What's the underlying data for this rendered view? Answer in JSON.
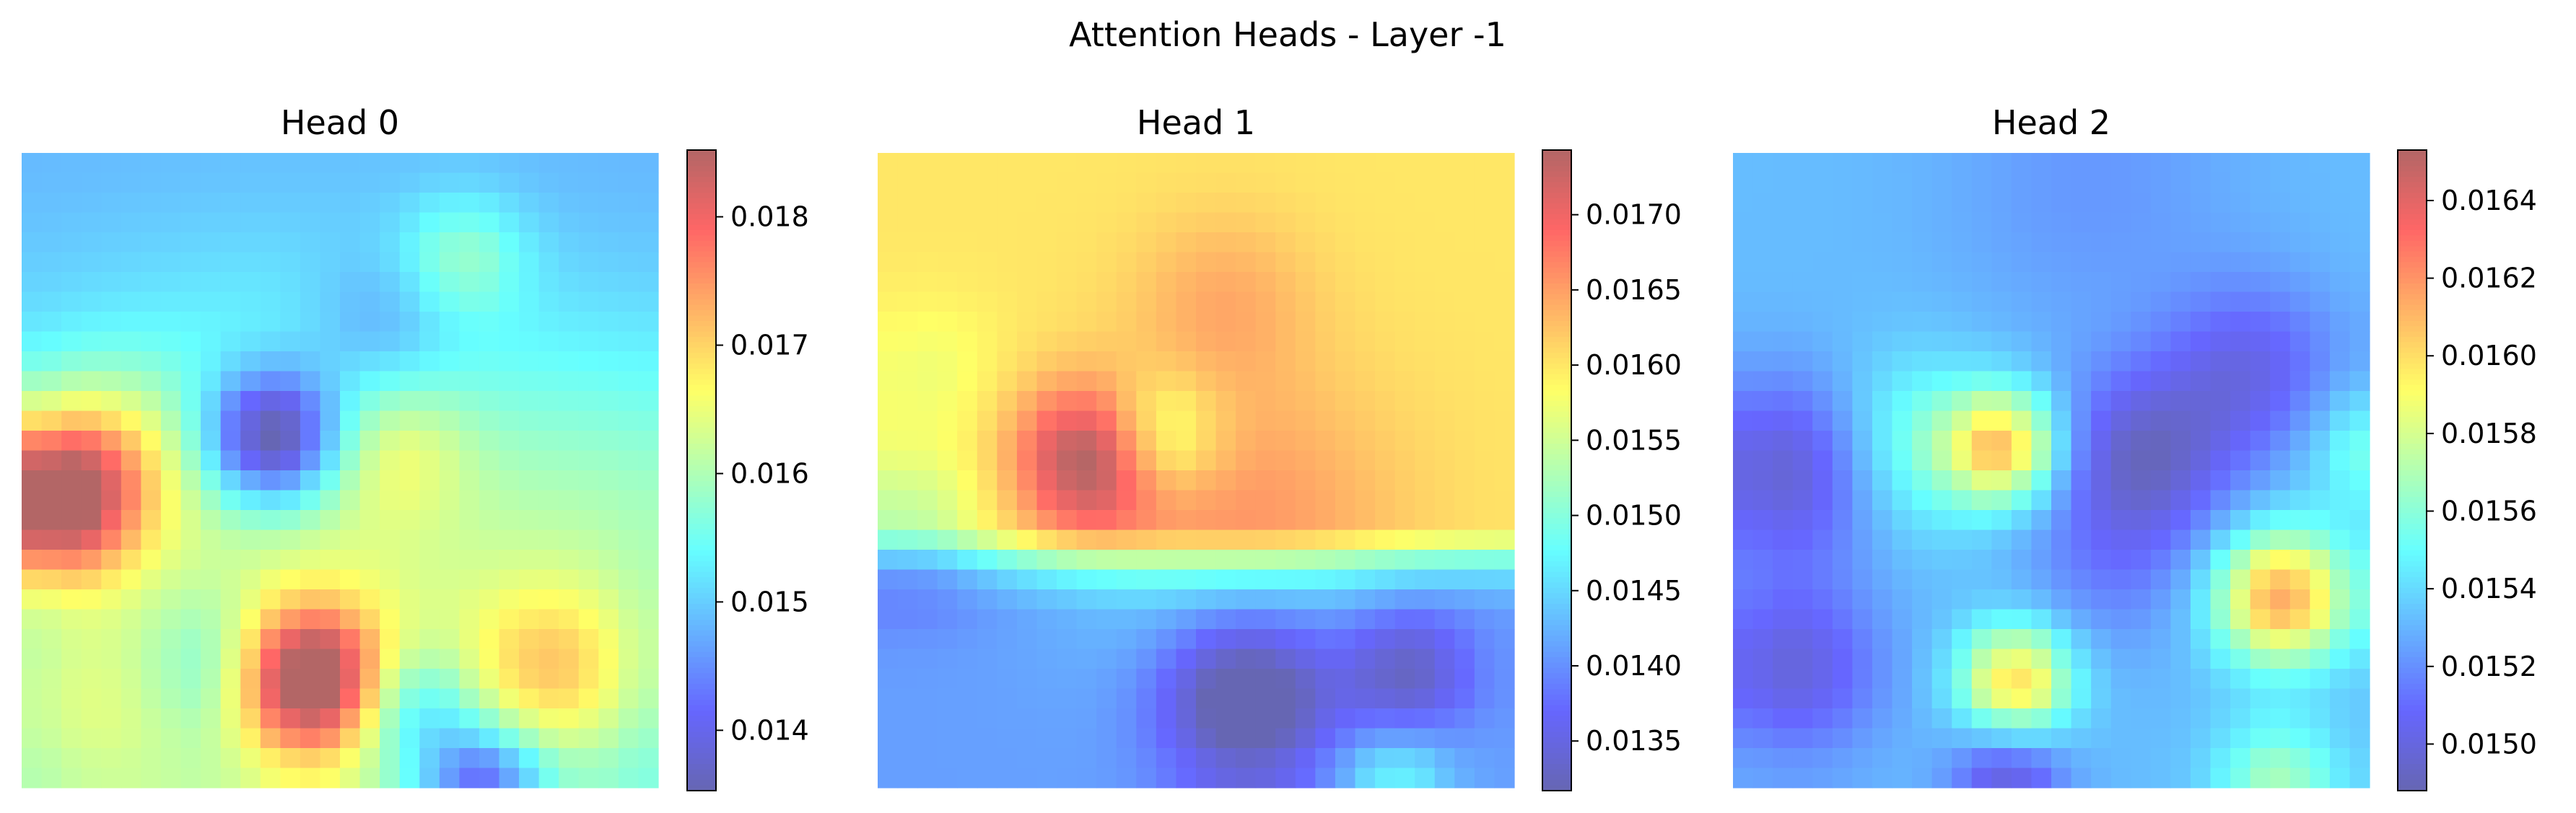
{
  "figure": {
    "title": "Attention Heads - Layer -1"
  },
  "colormap": {
    "name": "jet",
    "alpha": 0.6,
    "stops": [
      "#000080",
      "#0000ff",
      "#00ffff",
      "#ffff00",
      "#ff0000",
      "#800000"
    ]
  },
  "chart_data": [
    {
      "type": "heatmap",
      "title": "Head 0",
      "grid_size": 16,
      "vmin": 0.01353,
      "vmax": 0.01852,
      "colorbar_ticks": [
        0.014,
        0.015,
        0.016,
        0.017,
        0.018
      ],
      "colorbar_tick_labels": [
        "0.014",
        "0.015",
        "0.016",
        "0.017",
        "0.018"
      ],
      "blobs": [
        {
          "cx": 6.7,
          "cy": 12.8,
          "s": 1.2,
          "a": 0.0033
        },
        {
          "cx": 0.3,
          "cy": 8.3,
          "s": 1.3,
          "a": 0.003
        },
        {
          "cx": 1.4,
          "cy": 7.2,
          "s": 1.6,
          "a": 0.0012
        },
        {
          "cx": 5.8,
          "cy": 6.7,
          "s": 1.1,
          "a": -0.0028
        },
        {
          "cx": 10.6,
          "cy": 2.1,
          "s": 1.0,
          "a": 0.0009
        },
        {
          "cx": 12.9,
          "cy": 12.6,
          "s": 1.5,
          "a": 0.0013
        },
        {
          "cx": 11.1,
          "cy": 15.4,
          "s": 1.0,
          "a": -0.002
        },
        {
          "cx": 9.3,
          "cy": 13.5,
          "s": 1.0,
          "a": -0.0012
        },
        {
          "cx": 8.5,
          "cy": 4.0,
          "s": 1.2,
          "a": -0.0006
        },
        {
          "cx": 4.5,
          "cy": 12.5,
          "s": 1.3,
          "a": -0.001
        },
        {
          "cx": 9.0,
          "cy": 7.0,
          "s": 1.2,
          "a": 0.0007
        },
        {
          "cx": 6.5,
          "cy": 11.0,
          "s": 5.0,
          "a": 0.0013
        },
        {
          "cx": 15.0,
          "cy": 8.5,
          "s": 3.0,
          "a": 0.0006
        },
        {
          "cx": 1.0,
          "cy": 13.5,
          "s": 2.0,
          "a": 0.0006
        }
      ],
      "base": 0.0148,
      "gradient_y": 0.00045
    },
    {
      "type": "heatmap",
      "title": "Head 1",
      "grid_size": 16,
      "vmin": 0.01317,
      "vmax": 0.01743,
      "colorbar_ticks": [
        0.0135,
        0.014,
        0.0145,
        0.015,
        0.0155,
        0.016,
        0.0165,
        0.017
      ],
      "colorbar_tick_labels": [
        "0.0135",
        "0.0140",
        "0.0145",
        "0.0150",
        "0.0155",
        "0.0160",
        "0.0165",
        "0.0170"
      ],
      "blobs": [
        {
          "cx": 4.8,
          "cy": 7.2,
          "s": 1.2,
          "a": 0.0016
        },
        {
          "cx": 8.5,
          "cy": 9.0,
          "s": 2.8,
          "a": 0.0006
        },
        {
          "cx": 8.2,
          "cy": 3.2,
          "s": 1.5,
          "a": 0.0004
        },
        {
          "cx": 6.5,
          "cy": 6.7,
          "s": 1.0,
          "a": -0.001
        },
        {
          "cx": 8.8,
          "cy": 13.2,
          "s": 1.5,
          "a": -0.0015
        },
        {
          "cx": 12.8,
          "cy": 12.6,
          "s": 1.1,
          "a": -0.001
        },
        {
          "cx": 0.3,
          "cy": 9.0,
          "s": 1.3,
          "a": -0.0007
        },
        {
          "cx": 12.5,
          "cy": 15.3,
          "s": 0.9,
          "a": 0.0008
        },
        {
          "cx": 0.8,
          "cy": 5.0,
          "s": 1.2,
          "a": -0.0003
        }
      ],
      "base": 0.016,
      "bottom_base": 0.0141,
      "bottom_start": 9.5
    },
    {
      "type": "heatmap",
      "title": "Head 2",
      "grid_size": 16,
      "vmin": 0.01488,
      "vmax": 0.01653,
      "colorbar_ticks": [
        0.015,
        0.0152,
        0.0154,
        0.0156,
        0.0158,
        0.016,
        0.0162,
        0.0164
      ],
      "colorbar_tick_labels": [
        "0.0150",
        "0.0152",
        "0.0154",
        "0.0156",
        "0.0158",
        "0.0160",
        "0.0162",
        "0.0164"
      ],
      "blobs": [
        {
          "cx": 6.3,
          "cy": 6.9,
          "s": 0.9,
          "a": 0.00085
        },
        {
          "cx": 13.3,
          "cy": 10.7,
          "s": 1.1,
          "a": 0.00095
        },
        {
          "cx": 6.6,
          "cy": 12.8,
          "s": 0.9,
          "a": 0.00085
        },
        {
          "cx": 4.0,
          "cy": 6.9,
          "s": 1.5,
          "a": 0.0003
        },
        {
          "cx": 9.8,
          "cy": 7.2,
          "s": 1.5,
          "a": -0.0004
        },
        {
          "cx": 12.5,
          "cy": 5.0,
          "s": 1.5,
          "a": -0.0003
        },
        {
          "cx": 1.0,
          "cy": 7.5,
          "s": 1.6,
          "a": -0.0004
        },
        {
          "cx": 6.4,
          "cy": 15.3,
          "s": 0.9,
          "a": -0.0004
        },
        {
          "cx": 1.0,
          "cy": 12.5,
          "s": 1.5,
          "a": -0.00035
        },
        {
          "cx": 13.2,
          "cy": 15.3,
          "s": 1.0,
          "a": 0.0004
        },
        {
          "cx": 9.0,
          "cy": 10.0,
          "s": 1.5,
          "a": -0.00015
        },
        {
          "cx": 15.5,
          "cy": 7.0,
          "s": 1.0,
          "a": 0.0003
        },
        {
          "cx": 8.5,
          "cy": 0.5,
          "s": 2.5,
          "a": -0.0001
        }
      ],
      "base": 0.01532
    }
  ]
}
